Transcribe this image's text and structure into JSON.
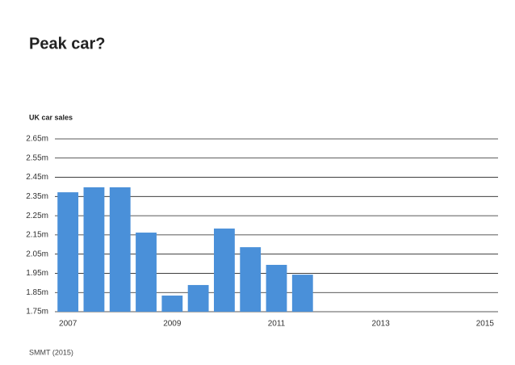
{
  "chart_data": {
    "type": "bar",
    "title": "Peak car?",
    "y_label": "UK car sales",
    "source": "SMMT (2015)",
    "categories": [
      "2007",
      null,
      null,
      null,
      "2009",
      null,
      null,
      null,
      "2011",
      null,
      null,
      null,
      "2013",
      null,
      null,
      null,
      "2015"
    ],
    "values": [
      2.372,
      2.398,
      2.398,
      2.162,
      1.834,
      1.889,
      2.183,
      2.086,
      1.994,
      1.943,
      null,
      null,
      null,
      null,
      null,
      null,
      null
    ],
    "color": "#4a90d9",
    "ylim": [
      1.75,
      2.65
    ],
    "yticks": [
      {
        "value": 1.75,
        "label": "1.75m"
      },
      {
        "value": 1.85,
        "label": "1.85m"
      },
      {
        "value": 1.95,
        "label": "1.95m"
      },
      {
        "value": 2.05,
        "label": "2.05m"
      },
      {
        "value": 2.15,
        "label": "2.15m"
      },
      {
        "value": 2.25,
        "label": "2.25m"
      },
      {
        "value": 2.35,
        "label": "2.35m"
      },
      {
        "value": 2.45,
        "label": "2.45m"
      },
      {
        "value": 2.55,
        "label": "2.55m"
      },
      {
        "value": 2.65,
        "label": "2.65m"
      }
    ],
    "grid": true
  }
}
